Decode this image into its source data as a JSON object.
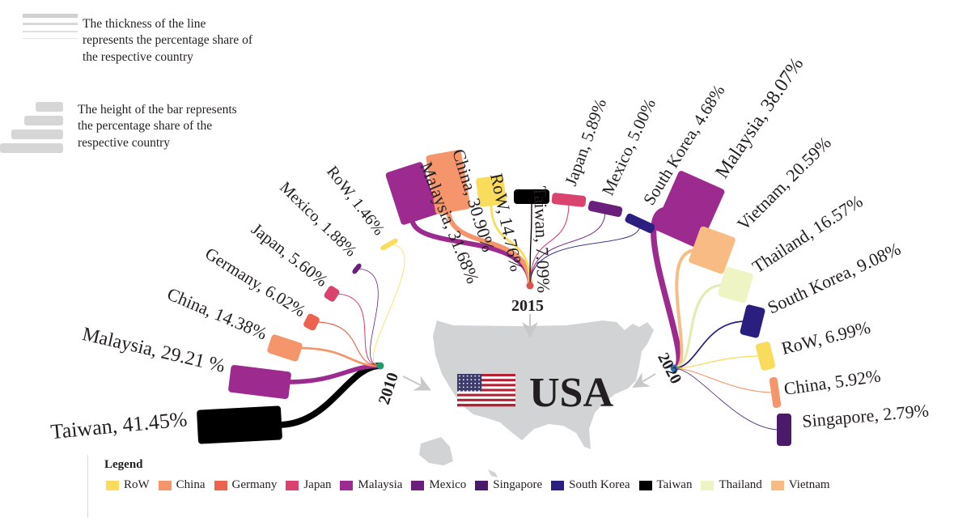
{
  "notes": {
    "line_note": "The thickness of the line represents the percentage share of the respective country",
    "bar_note": "The height of the bar represents the percentage share of the respective country"
  },
  "destination": {
    "label": "USA",
    "map_color": "#d1d3d4",
    "flag": "us-flag-icon"
  },
  "colors": {
    "RoW": "#f9dc5c",
    "China": "#f4956b",
    "Germany": "#ec6350",
    "Japan": "#d9436e",
    "Malaysia": "#9c2a8f",
    "Mexico": "#6a1f7a",
    "Singapore": "#4a1a6b",
    "South Korea": "#2a1f7f",
    "Taiwan": "#000000",
    "Thailand": "#eef4c3",
    "Vietnam": "#f8bb83"
  },
  "legend": {
    "title": "Legend",
    "items": [
      "RoW",
      "China",
      "Germany",
      "Japan",
      "Malaysia",
      "Mexico",
      "Singapore",
      "South Korea",
      "Taiwan",
      "Thailand",
      "Vietnam"
    ]
  },
  "chart_data": {
    "type": "flow",
    "groups": [
      {
        "year": "2010",
        "hub_color": "#1f9a6a",
        "flows": [
          {
            "country": "Taiwan",
            "value": 41.45,
            "label": "Taiwan, 41.45%"
          },
          {
            "country": "Malaysia",
            "value": 29.21,
            "label": "Malaysia, 29.21 %"
          },
          {
            "country": "China",
            "value": 14.38,
            "label": "China, 14.38%"
          },
          {
            "country": "Germany",
            "value": 6.02,
            "label": "Germany, 6.02%"
          },
          {
            "country": "Japan",
            "value": 5.6,
            "label": "Japan, 5.60%"
          },
          {
            "country": "Mexico",
            "value": 1.88,
            "label": "Mexico, 1.88%"
          },
          {
            "country": "RoW",
            "value": 1.46,
            "label": "RoW, 1.46%"
          }
        ]
      },
      {
        "year": "2015",
        "hub_color": "#d9534f",
        "flows": [
          {
            "country": "Malaysia",
            "value": 31.68,
            "label": "Malaysia, 31.68%"
          },
          {
            "country": "China",
            "value": 30.9,
            "label": "China, 30.90%"
          },
          {
            "country": "RoW",
            "value": 14.76,
            "label": "RoW, 14.76%"
          },
          {
            "country": "Taiwan",
            "value": 7.09,
            "label": "Taiwan, 7.09%"
          },
          {
            "country": "Japan",
            "value": 5.89,
            "label": "Japan, 5.89%"
          },
          {
            "country": "Mexico",
            "value": 5.0,
            "label": "Mexico, 5.00%"
          },
          {
            "country": "South Korea",
            "value": 4.68,
            "label": "South Korea, 4.68%"
          }
        ]
      },
      {
        "year": "2020",
        "hub_color": "#2f6fb5",
        "flows": [
          {
            "country": "Malaysia",
            "value": 38.07,
            "label": "Malaysia, 38.07%"
          },
          {
            "country": "Vietnam",
            "value": 20.59,
            "label": "Vietnam, 20.59%"
          },
          {
            "country": "Thailand",
            "value": 16.57,
            "label": "Thailand, 16.57%"
          },
          {
            "country": "South Korea",
            "value": 9.08,
            "label": "South Korea, 9.08%"
          },
          {
            "country": "RoW",
            "value": 6.99,
            "label": "RoW, 6.99%"
          },
          {
            "country": "China",
            "value": 5.92,
            "label": "China, 5.92%"
          },
          {
            "country": "Singapore",
            "value": 2.79,
            "label": "Singapore, 2.79%"
          }
        ]
      }
    ]
  }
}
